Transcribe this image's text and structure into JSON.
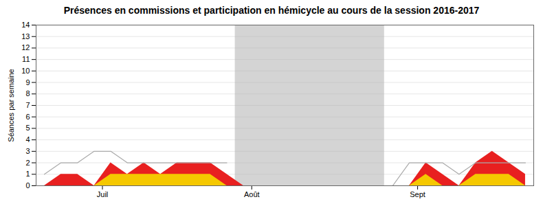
{
  "chart_data": {
    "type": "area",
    "title": "Présences en commissions et participation en hémicycle au cours de la session 2016-2017",
    "ylabel": "Séances par semaine",
    "x": [
      0,
      1,
      2,
      3,
      4,
      5,
      6,
      7,
      8,
      9,
      10,
      11,
      12,
      13,
      14,
      15,
      16,
      17,
      18,
      19,
      20,
      21,
      22,
      23,
      24,
      25,
      26,
      27,
      28,
      29
    ],
    "series": [
      {
        "type": "area",
        "color": "#e82020",
        "values": [
          0,
          1,
          1,
          0,
          2,
          1,
          2,
          1,
          2,
          2,
          2,
          1,
          0,
          0,
          0,
          0,
          0,
          0,
          0,
          0,
          0,
          0,
          0,
          2,
          1,
          0,
          2,
          3,
          2,
          1
        ]
      },
      {
        "type": "area",
        "color": "#f5c800",
        "values": [
          0,
          0,
          0,
          0,
          1,
          1,
          1,
          1,
          1,
          1,
          1,
          0,
          0,
          0,
          0,
          0,
          0,
          0,
          0,
          0,
          0,
          0,
          0,
          1,
          0,
          0,
          1,
          1,
          1,
          0
        ]
      },
      {
        "type": "line",
        "color": "#aaaaaa",
        "values": [
          1,
          2,
          2,
          3,
          3,
          2,
          2,
          2,
          2,
          2,
          2,
          2,
          null,
          null,
          null,
          null,
          null,
          null,
          null,
          null,
          null,
          0,
          2,
          2,
          2,
          1,
          2,
          2,
          2,
          2
        ]
      }
    ],
    "shaded_regions": [
      {
        "x0": 11.5,
        "x1": 20.5,
        "color": "#b0b0b0"
      }
    ],
    "stacked": false,
    "xlim": [
      -0.5,
      29.5
    ],
    "xticks": [
      {
        "value": 3.5,
        "label": "Juil"
      },
      {
        "value": 12.5,
        "label": "Août"
      },
      {
        "value": 22.5,
        "label": "Sept"
      }
    ],
    "ylim": [
      0,
      14
    ],
    "yticks": [
      0,
      1,
      2,
      3,
      4,
      5,
      6,
      7,
      8,
      9,
      10,
      11,
      12,
      13,
      14
    ],
    "grid": true
  }
}
